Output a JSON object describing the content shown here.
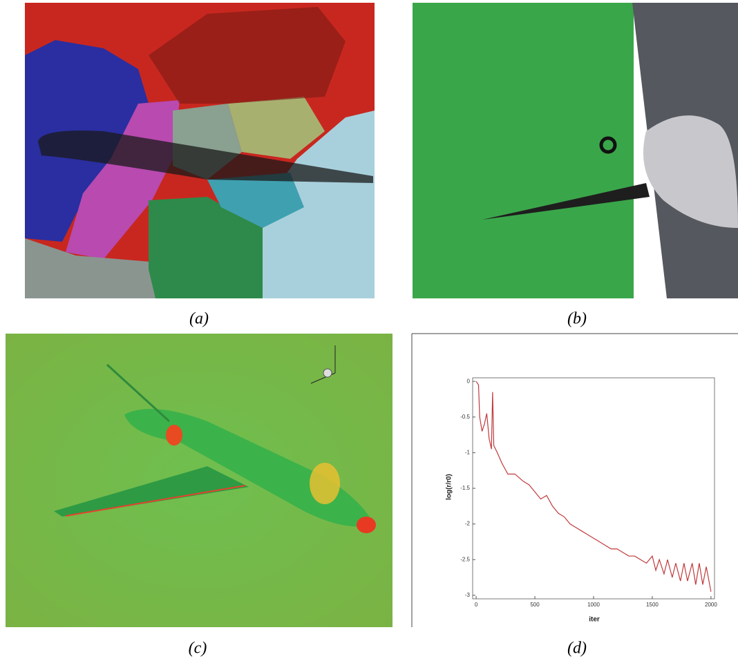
{
  "panels": [
    {
      "caption": "(a)"
    },
    {
      "caption": "(b)"
    },
    {
      "caption": "(c)"
    },
    {
      "caption": "(d)"
    }
  ],
  "chart_data": {
    "type": "line",
    "xlabel": "iter",
    "ylabel": "log(r/r0)",
    "xlim": [
      -30,
      2030
    ],
    "ylim": [
      -3.05,
      0.05
    ],
    "xticks": [
      0,
      500,
      1000,
      1500,
      2000
    ],
    "yticks": [
      0,
      -0.5,
      -1,
      -1.5,
      -2,
      -2.5,
      -3
    ],
    "series": [
      {
        "color": "#c0393b",
        "x": [
          0,
          20,
          30,
          50,
          70,
          90,
          110,
          130,
          140,
          150,
          180,
          220,
          270,
          330,
          400,
          450,
          500,
          550,
          600,
          650,
          700,
          750,
          800,
          850,
          900,
          950,
          1000,
          1050,
          1100,
          1150,
          1200,
          1250,
          1300,
          1350,
          1400,
          1450,
          1500,
          1530,
          1560,
          1600,
          1630,
          1670,
          1700,
          1740,
          1770,
          1800,
          1840,
          1870,
          1900,
          1930,
          1960,
          2000
        ],
        "values": [
          0,
          -0.05,
          -0.5,
          -0.7,
          -0.6,
          -0.45,
          -0.8,
          -0.95,
          -0.15,
          -0.9,
          -1.0,
          -1.15,
          -1.3,
          -1.3,
          -1.4,
          -1.45,
          -1.55,
          -1.65,
          -1.6,
          -1.75,
          -1.85,
          -1.9,
          -2.0,
          -2.05,
          -2.1,
          -2.15,
          -2.2,
          -2.25,
          -2.3,
          -2.35,
          -2.35,
          -2.4,
          -2.45,
          -2.45,
          -2.5,
          -2.55,
          -2.45,
          -2.65,
          -2.5,
          -2.7,
          -2.5,
          -2.75,
          -2.55,
          -2.8,
          -2.55,
          -2.8,
          -2.55,
          -2.85,
          -2.55,
          -2.85,
          -2.6,
          -2.95
        ]
      }
    ]
  }
}
